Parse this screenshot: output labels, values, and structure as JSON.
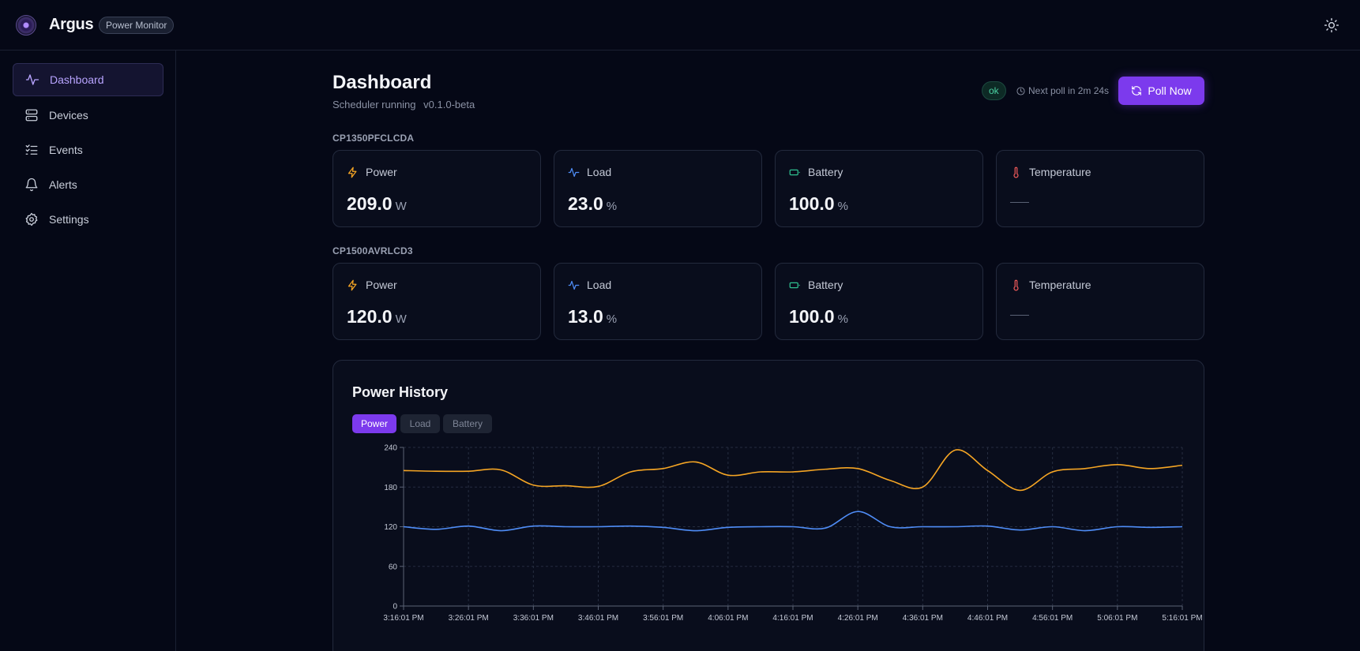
{
  "app": {
    "name": "Argus",
    "badge": "Power Monitor"
  },
  "nav": [
    {
      "label": "Dashboard",
      "icon": "activity-icon",
      "active": true
    },
    {
      "label": "Devices",
      "icon": "server-icon"
    },
    {
      "label": "Events",
      "icon": "list-check-icon"
    },
    {
      "label": "Alerts",
      "icon": "bell-icon"
    },
    {
      "label": "Settings",
      "icon": "gear-icon"
    }
  ],
  "header": {
    "title": "Dashboard",
    "scheduler_status": "Scheduler running",
    "version": "v0.1.0-beta",
    "status_badge": "ok",
    "next_poll": "Next poll in 2m 24s",
    "poll_button": "Poll Now"
  },
  "devices": [
    {
      "name": "CP1350PFCLCDA",
      "metrics": [
        {
          "label": "Power",
          "value": "209.0",
          "unit": "W",
          "icon": "bolt-icon",
          "color": "#f5a524"
        },
        {
          "label": "Load",
          "value": "23.0",
          "unit": "%",
          "icon": "activity-icon",
          "color": "#4f8df7"
        },
        {
          "label": "Battery",
          "value": "100.0",
          "unit": "%",
          "icon": "battery-icon",
          "color": "#2fbf8f"
        },
        {
          "label": "Temperature",
          "value": "",
          "unit": "",
          "icon": "thermometer-icon",
          "color": "#ef5a5a"
        }
      ]
    },
    {
      "name": "CP1500AVRLCD3",
      "metrics": [
        {
          "label": "Power",
          "value": "120.0",
          "unit": "W",
          "icon": "bolt-icon",
          "color": "#f5a524"
        },
        {
          "label": "Load",
          "value": "13.0",
          "unit": "%",
          "icon": "activity-icon",
          "color": "#4f8df7"
        },
        {
          "label": "Battery",
          "value": "100.0",
          "unit": "%",
          "icon": "battery-icon",
          "color": "#2fbf8f"
        },
        {
          "label": "Temperature",
          "value": "",
          "unit": "",
          "icon": "thermometer-icon",
          "color": "#ef5a5a"
        }
      ]
    }
  ],
  "history": {
    "title": "Power History",
    "tabs": [
      {
        "label": "Power",
        "active": true
      },
      {
        "label": "Load",
        "active": false
      },
      {
        "label": "Battery",
        "active": false
      }
    ]
  },
  "chart_data": {
    "type": "line",
    "title": "Power History",
    "ylim": [
      0,
      240
    ],
    "yticks": [
      0,
      60,
      120,
      180,
      240
    ],
    "x_ticks": [
      "3:16:01 PM",
      "3:26:01 PM",
      "3:36:01 PM",
      "3:46:01 PM",
      "3:56:01 PM",
      "4:06:01 PM",
      "4:16:01 PM",
      "4:26:01 PM",
      "4:36:01 PM",
      "4:46:01 PM",
      "4:56:01 PM",
      "5:06:01 PM",
      "5:16:01 PM"
    ],
    "grid": true,
    "series": [
      {
        "color": "#f5a524",
        "x": [
          0,
          5,
          10,
          15,
          20,
          25,
          30,
          35,
          40,
          45,
          50,
          55,
          60,
          65,
          70,
          75,
          80,
          85,
          90,
          95,
          100,
          105,
          110,
          115,
          120
        ],
        "values": [
          205,
          204,
          204,
          206,
          183,
          182,
          181,
          203,
          208,
          218,
          198,
          203,
          203,
          207,
          208,
          190,
          180,
          236,
          205,
          175,
          203,
          208,
          214,
          208,
          213
        ]
      },
      {
        "color": "#4f8df7",
        "x": [
          0,
          5,
          10,
          15,
          20,
          25,
          30,
          35,
          40,
          45,
          50,
          55,
          60,
          65,
          70,
          75,
          80,
          85,
          90,
          95,
          100,
          105,
          110,
          115,
          120
        ],
        "values": [
          120,
          116,
          121,
          114,
          121,
          120,
          120,
          121,
          119,
          114,
          119,
          120,
          120,
          118,
          143,
          120,
          120,
          120,
          121,
          115,
          120,
          114,
          120,
          119,
          120
        ]
      }
    ]
  }
}
